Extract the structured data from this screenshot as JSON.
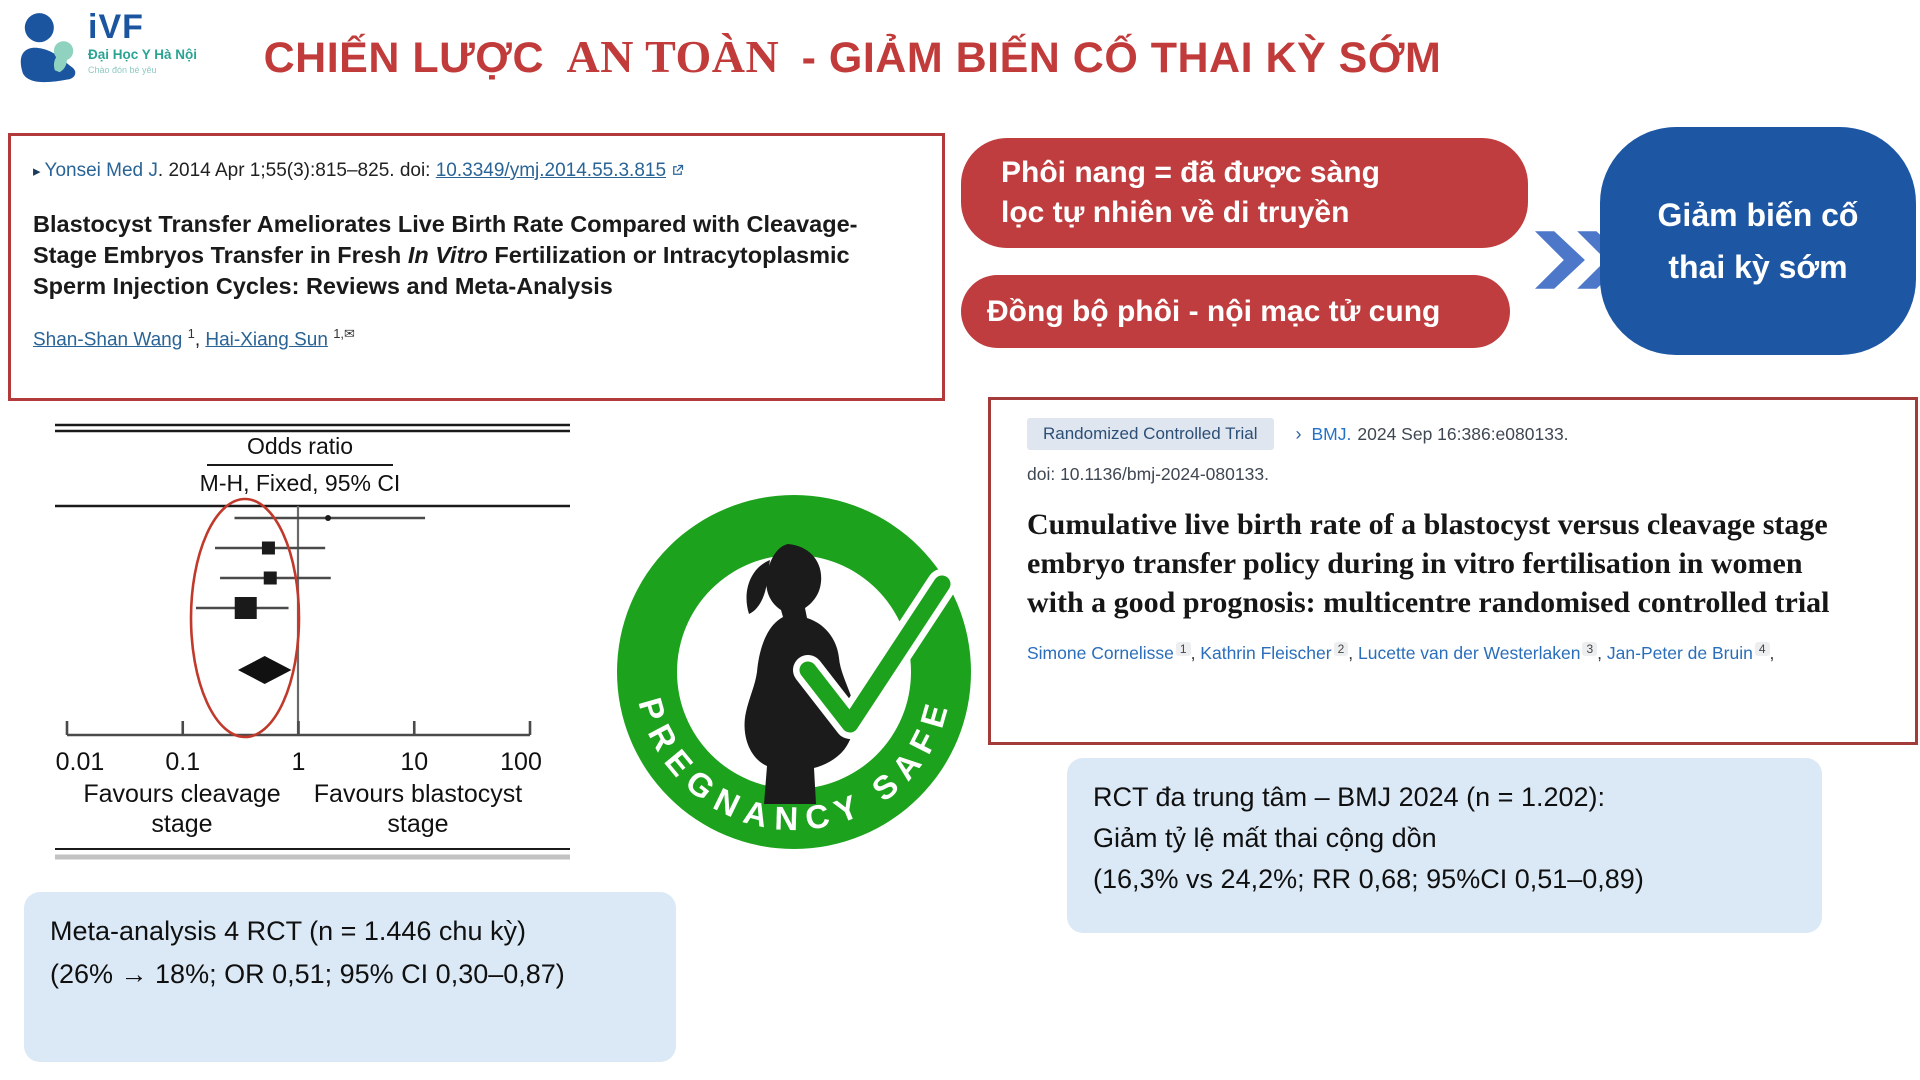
{
  "logo": {
    "brand": "iVF",
    "org": "Đại Học Y Hà Nội",
    "tagline": "Chào đón bé yêu"
  },
  "title": {
    "part1": "CHIẾN LƯỢC",
    "part2": "AN TOÀN",
    "part3": "- GIẢM BIẾN CỐ THAI KỲ SỚM"
  },
  "pubmed_card": {
    "citation_marker": "▸",
    "journal": "Yonsei Med J",
    "citation_rest": ". 2014 Apr 1;55(3):815–825. doi: ",
    "doi_link": "10.3349/ymj.2014.55.3.815",
    "title_pre": "Blastocyst Transfer Ameliorates Live Birth Rate Compared with Cleavage-Stage Embryos Transfer in Fresh ",
    "title_italic": "In Vitro",
    "title_post": " Fertilization or Intracytoplasmic Sperm Injection Cycles: Reviews and Meta-Analysis",
    "author1": "Shan-Shan Wang",
    "author1_sup": "1",
    "sep": ", ",
    "author2": "Hai-Xiang Sun",
    "author2_sup": "1,✉"
  },
  "chart_data": {
    "type": "forest",
    "title": "Odds ratio",
    "subtitle": "M-H, Fixed, 95% CI",
    "x_scale": "log",
    "x_ticks": [
      0.01,
      0.1,
      1,
      10,
      100
    ],
    "favours_left": [
      "Favours cleavage",
      "stage"
    ],
    "favours_right": [
      "Favours blastocyst",
      "stage"
    ],
    "studies": [
      {
        "or": 1.8,
        "ci": [
          0.28,
          12.4
        ],
        "marker": "dot",
        "size": 6
      },
      {
        "or": 0.55,
        "ci": [
          0.19,
          1.7
        ],
        "marker": "square",
        "size": 13
      },
      {
        "or": 0.57,
        "ci": [
          0.21,
          1.9
        ],
        "marker": "square",
        "size": 13
      },
      {
        "or": 0.35,
        "ci": [
          0.13,
          0.82
        ],
        "marker": "square",
        "size": 22
      }
    ],
    "pooled": {
      "or": 0.51,
      "ci": [
        0.3,
        0.87
      ]
    },
    "annotation": "red ellipse highlighting study markers and pooled diamond"
  },
  "badge": {
    "text": "PREGNANCY SAFE"
  },
  "flow": {
    "box1_line1": "Phôi nang = đã được sàng",
    "box1_line2": "lọc tự nhiên về di truyền",
    "box2": "Đồng bộ phôi - nội mạc tử cung",
    "result_line1": "Giảm biến cố",
    "result_line2": "thai kỳ sớm"
  },
  "bmj_card": {
    "tag": "Randomized Controlled Trial",
    "chevron": "›",
    "journal": "BMJ.",
    "citation": "2024 Sep 16:386:e080133.",
    "doi": "doi: 10.1136/bmj-2024-080133.",
    "title": "Cumulative live birth rate of a blastocyst versus cleavage stage embryo transfer policy during in vitro fertilisation in women with a good prognosis: multicentre randomised controlled trial",
    "sep": ", ",
    "trail": ",",
    "author1": "Simone Cornelisse",
    "author1_sup": "1",
    "author2": "Kathrin Fleischer",
    "author2_sup": "2",
    "author3": "Lucette van der Westerlaken",
    "author3_sup": "3",
    "author4": "Jan-Peter de Bruin",
    "author4_sup": "4"
  },
  "note_left": {
    "line1": "Meta-analysis 4 RCT (n = 1.446 chu kỳ)",
    "line2": "(26% → 18%; OR 0,51; 95% CI 0,30–0,87)"
  },
  "note_right": {
    "line1": "RCT đa trung tâm – BMJ 2024 (n = 1.202):",
    "line2": "Giảm tỷ lệ mất thai cộng dồn",
    "line3": "(16,3% vs 24,2%; RR 0,68; 95%CI 0,51–0,89)"
  },
  "colors": {
    "title_red": "#c23b3b",
    "flow_red": "#bf3d3e",
    "card_border_red": "#b23a3a",
    "result_blue": "#1d57a4",
    "chevron_blue": "#4d78c9",
    "note_bg": "#dbe9f6",
    "link_blue": "#2a6496",
    "bmj_link_blue": "#2472c8",
    "badge_green": "#1ca21c",
    "logo_blue": "#1b55a0",
    "logo_teal": "#2ba393"
  }
}
